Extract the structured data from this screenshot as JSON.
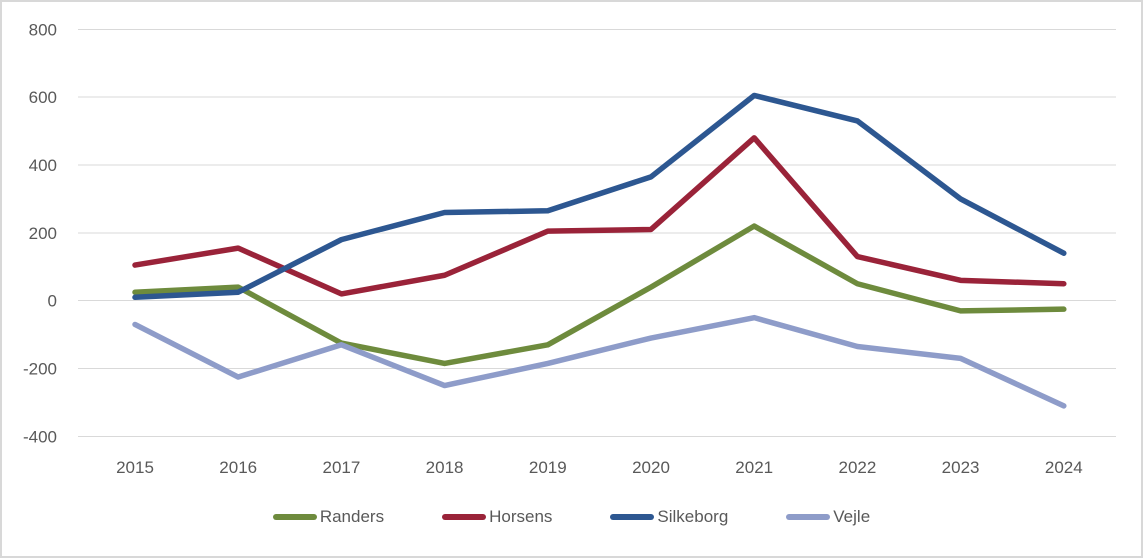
{
  "figure": {
    "background": "#FFFFFF",
    "border_color": "#D8D8D8"
  },
  "chart_data": {
    "type": "line",
    "title": "",
    "xlabel": "",
    "ylabel": "",
    "categories": [
      "2015",
      "2016",
      "2017",
      "2018",
      "2019",
      "2020",
      "2021",
      "2022",
      "2023",
      "2024"
    ],
    "series": [
      {
        "name": "Randers",
        "color": "#6E8B3D",
        "values": [
          25,
          40,
          -125,
          -185,
          -130,
          40,
          220,
          50,
          -30,
          -25
        ]
      },
      {
        "name": "Horsens",
        "color": "#9A2339",
        "values": [
          105,
          155,
          20,
          75,
          205,
          210,
          480,
          130,
          60,
          50
        ]
      },
      {
        "name": "Silkeborg",
        "color": "#2D5791",
        "values": [
          10,
          25,
          180,
          260,
          265,
          365,
          605,
          530,
          300,
          140
        ]
      },
      {
        "name": "Vejle",
        "color": "#8E9CC9",
        "values": [
          -70,
          -225,
          -130,
          -250,
          -185,
          -110,
          -50,
          -135,
          -170,
          -310
        ]
      }
    ],
    "ylim": [
      -400,
      800
    ],
    "yticks": [
      800,
      600,
      400,
      200,
      0,
      -200,
      -400
    ],
    "grid": true,
    "gridline_color": "#D9D9D9",
    "axis_text_color": "#595959",
    "legend_position": "bottom"
  }
}
